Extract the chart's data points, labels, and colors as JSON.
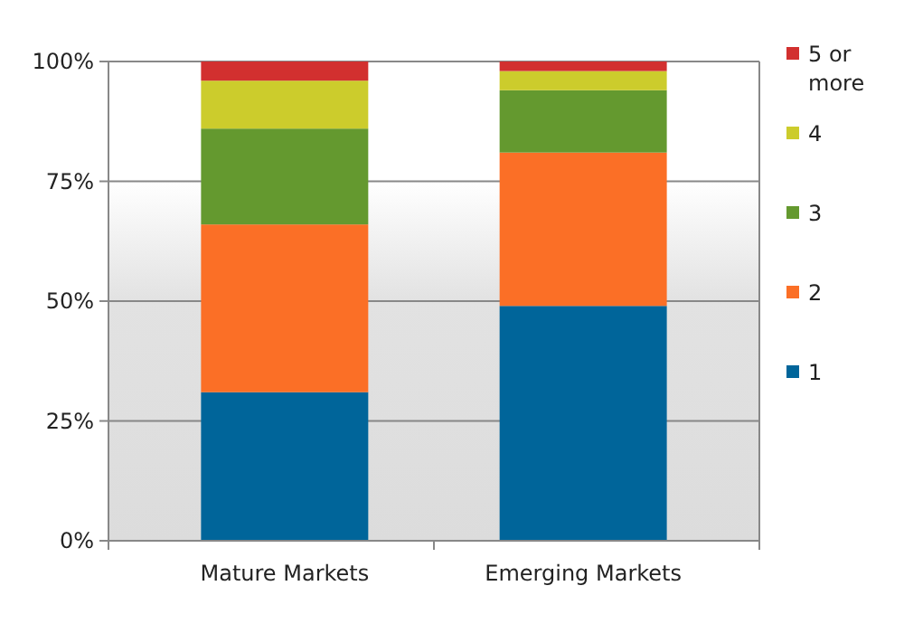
{
  "chart_data": {
    "type": "bar",
    "stacked": true,
    "categories": [
      "Mature Markets",
      "Emerging Markets"
    ],
    "series": [
      {
        "name": "1",
        "color": "#00659a",
        "values": [
          31,
          49
        ]
      },
      {
        "name": "2",
        "color": "#fb6f26",
        "values": [
          35,
          32
        ]
      },
      {
        "name": "3",
        "color": "#64992f",
        "values": [
          20,
          13
        ]
      },
      {
        "name": "4",
        "color": "#cccc2c",
        "values": [
          10,
          4
        ]
      },
      {
        "name": "5 or more",
        "color": "#d2302f",
        "values": [
          4,
          2
        ]
      }
    ],
    "ylim": [
      0,
      100
    ],
    "yticks": [
      {
        "value": 0,
        "label": "0%"
      },
      {
        "value": 25,
        "label": "25%"
      },
      {
        "value": 50,
        "label": "50%"
      },
      {
        "value": 75,
        "label": "75%"
      },
      {
        "value": 100,
        "label": "100%"
      }
    ],
    "grid": "y",
    "legend": "right"
  }
}
